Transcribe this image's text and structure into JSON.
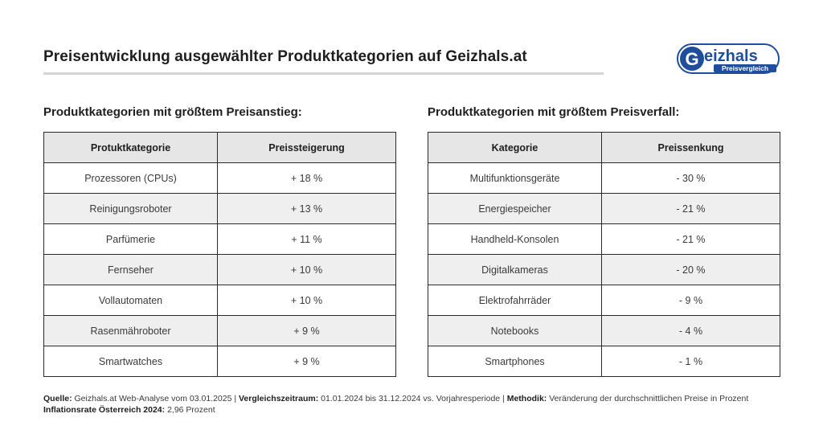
{
  "header": {
    "title": "Preisentwicklung ausgewählter Produktkategorien auf Geizhals.at",
    "logo_main": "Geizhals",
    "logo_sub": "Preisvergleich"
  },
  "left": {
    "heading": "Produktkategorien mit größtem Preisanstieg:",
    "col1": "Protuktkategorie",
    "col2": "Preissteigerung",
    "rows": [
      {
        "name": "Prozessoren (CPUs)",
        "value": "+ 18 %"
      },
      {
        "name": "Reinigungsroboter",
        "value": "+ 13 %"
      },
      {
        "name": "Parfümerie",
        "value": "+ 11 %"
      },
      {
        "name": "Fernseher",
        "value": "+ 10 %"
      },
      {
        "name": "Vollautomaten",
        "value": "+ 10 %"
      },
      {
        "name": "Rasenmähroboter",
        "value": "+ 9 %"
      },
      {
        "name": "Smartwatches",
        "value": "+ 9 %"
      }
    ]
  },
  "right": {
    "heading": "Produktkategorien mit größtem Preisverfall:",
    "col1": "Kategorie",
    "col2": "Preissenkung",
    "rows": [
      {
        "name": "Multifunktionsgeräte",
        "value": "- 30 %"
      },
      {
        "name": "Energiespeicher",
        "value": "- 21 %"
      },
      {
        "name": "Handheld-Konsolen",
        "value": "- 21 %"
      },
      {
        "name": "Digitalkameras",
        "value": "- 20 %"
      },
      {
        "name": "Elektrofahrräder",
        "value": "- 9 %"
      },
      {
        "name": "Notebooks",
        "value": "- 4 %"
      },
      {
        "name": "Smartphones",
        "value": "- 1 %"
      }
    ]
  },
  "footer": {
    "source_label": "Quelle:",
    "source_text": "Geizhals.at Web-Analyse vom 03.01.2025 |",
    "period_label": "Vergleichszeitraum:",
    "period_text": "01.01.2024 bis 31.12.2024 vs. Vorjahresperiode |",
    "method_label": "Methodik:",
    "method_text": "Veränderung der durchschnittlichen Preise in Prozent",
    "inflation_label": "Inflationsrate Österreich 2024:",
    "inflation_text": "2,96 Prozent"
  },
  "colors": {
    "logo_blue": "#1f4f9c",
    "header_bg": "#e6e6e6",
    "stripe_bg": "#efefef"
  }
}
